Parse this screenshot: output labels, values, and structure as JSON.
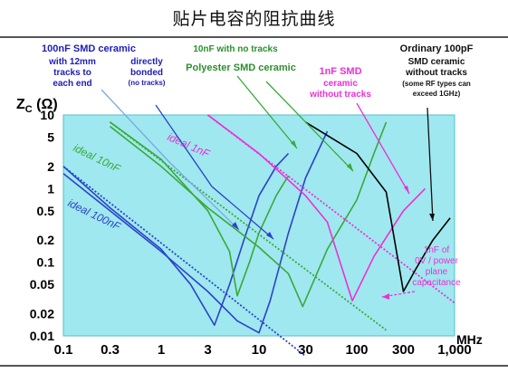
{
  "page": {
    "title": "贴片电容的阻抗曲线"
  },
  "colors": {
    "plot_bg": "#9fe8ef",
    "plot_border": "#4fbfcc",
    "blue": "#2b42c9",
    "green": "#3aa83a",
    "magenta": "#ee2ed8",
    "black": "#000000",
    "callout_text_blue": "#1d1db8",
    "callout_text_green": "#2d8f2d"
  },
  "annotations": {
    "c100nf": [
      "100nF SMD ceramic",
      "with 12mm",
      "tracks to",
      "each end"
    ],
    "direct": [
      "directly",
      "bonded",
      "(no tracks)"
    ],
    "c10nf": [
      "10nF with no tracks",
      "Polyester SMD ceramic"
    ],
    "c1nf": [
      "1nF SMD",
      "ceramic",
      "without tracks"
    ],
    "c100pf": [
      "Ordinary 100pF",
      "SMD ceramic",
      "without tracks",
      "(some RF types can",
      "exceed 1GHz)"
    ],
    "plane": [
      "1nF of",
      "0V / power",
      "plane",
      "capacitance"
    ]
  },
  "chart_data": {
    "type": "line",
    "title": "",
    "xlabel": "MHz",
    "ylabel": "Z_C (Ω)",
    "x_scale": "log",
    "y_scale": "log",
    "xlim": [
      0.1,
      1000
    ],
    "ylim": [
      0.01,
      10
    ],
    "x_ticks": [
      "0.1",
      "0.3",
      "1",
      "3",
      "10",
      "30",
      "100",
      "300",
      "1,000"
    ],
    "y_ticks": [
      "10",
      "5",
      "2",
      "1",
      "0.5",
      "0.2",
      "0.1",
      "0.05",
      "0.02",
      "0.01"
    ],
    "grid": false,
    "series": [
      {
        "name": "ideal 100nF",
        "color": "blue",
        "style": "dotted",
        "x": [
          0.1,
          30
        ],
        "y": [
          2.0,
          0.0053
        ]
      },
      {
        "name": "",
        "color": "blue",
        "style": "solid",
        "x": [
          0.1,
          0.3,
          1,
          2,
          3.5,
          5,
          7,
          10,
          15,
          20
        ],
        "y": [
          2.0,
          0.55,
          0.15,
          0.05,
          0.014,
          0.05,
          0.2,
          0.8,
          2,
          3
        ]
      },
      {
        "name": "",
        "color": "blue",
        "style": "solid",
        "x": [
          0.1,
          0.3,
          1,
          3,
          6,
          10,
          13,
          20,
          30,
          50
        ],
        "y": [
          1.6,
          0.5,
          0.14,
          0.04,
          0.016,
          0.011,
          0.03,
          0.25,
          1.4,
          6
        ]
      },
      {
        "name": "ideal 10nF",
        "color": "green",
        "style": "dotted",
        "x": [
          0.3,
          200
        ],
        "y": [
          8.0,
          0.012
        ]
      },
      {
        "name": "",
        "color": "green",
        "style": "solid",
        "x": [
          0.3,
          1,
          3,
          5,
          6,
          8,
          10,
          15,
          20
        ],
        "y": [
          8,
          2.5,
          0.5,
          0.14,
          0.035,
          0.1,
          0.25,
          0.8,
          1.5
        ]
      },
      {
        "name": "",
        "color": "green",
        "style": "solid",
        "x": [
          0.3,
          1,
          3,
          10,
          20,
          28,
          50,
          100,
          150,
          200
        ],
        "y": [
          7,
          2.0,
          0.55,
          0.16,
          0.07,
          0.025,
          0.15,
          0.7,
          3,
          8
        ]
      },
      {
        "name": "ideal 1nF",
        "color": "magenta",
        "style": "dotted",
        "x": [
          3,
          1000
        ],
        "y": [
          10,
          0.028
        ]
      },
      {
        "name": "",
        "color": "magenta",
        "style": "solid",
        "x": [
          3,
          10,
          30,
          50,
          90,
          150,
          300,
          500
        ],
        "y": [
          10,
          3,
          0.8,
          0.35,
          0.03,
          0.12,
          0.5,
          1.0
        ]
      },
      {
        "name": "",
        "color": "black",
        "style": "solid",
        "x": [
          30,
          100,
          200,
          300,
          400,
          600,
          900
        ],
        "y": [
          8,
          3.0,
          0.9,
          0.04,
          0.08,
          0.2,
          0.4
        ]
      }
    ]
  }
}
